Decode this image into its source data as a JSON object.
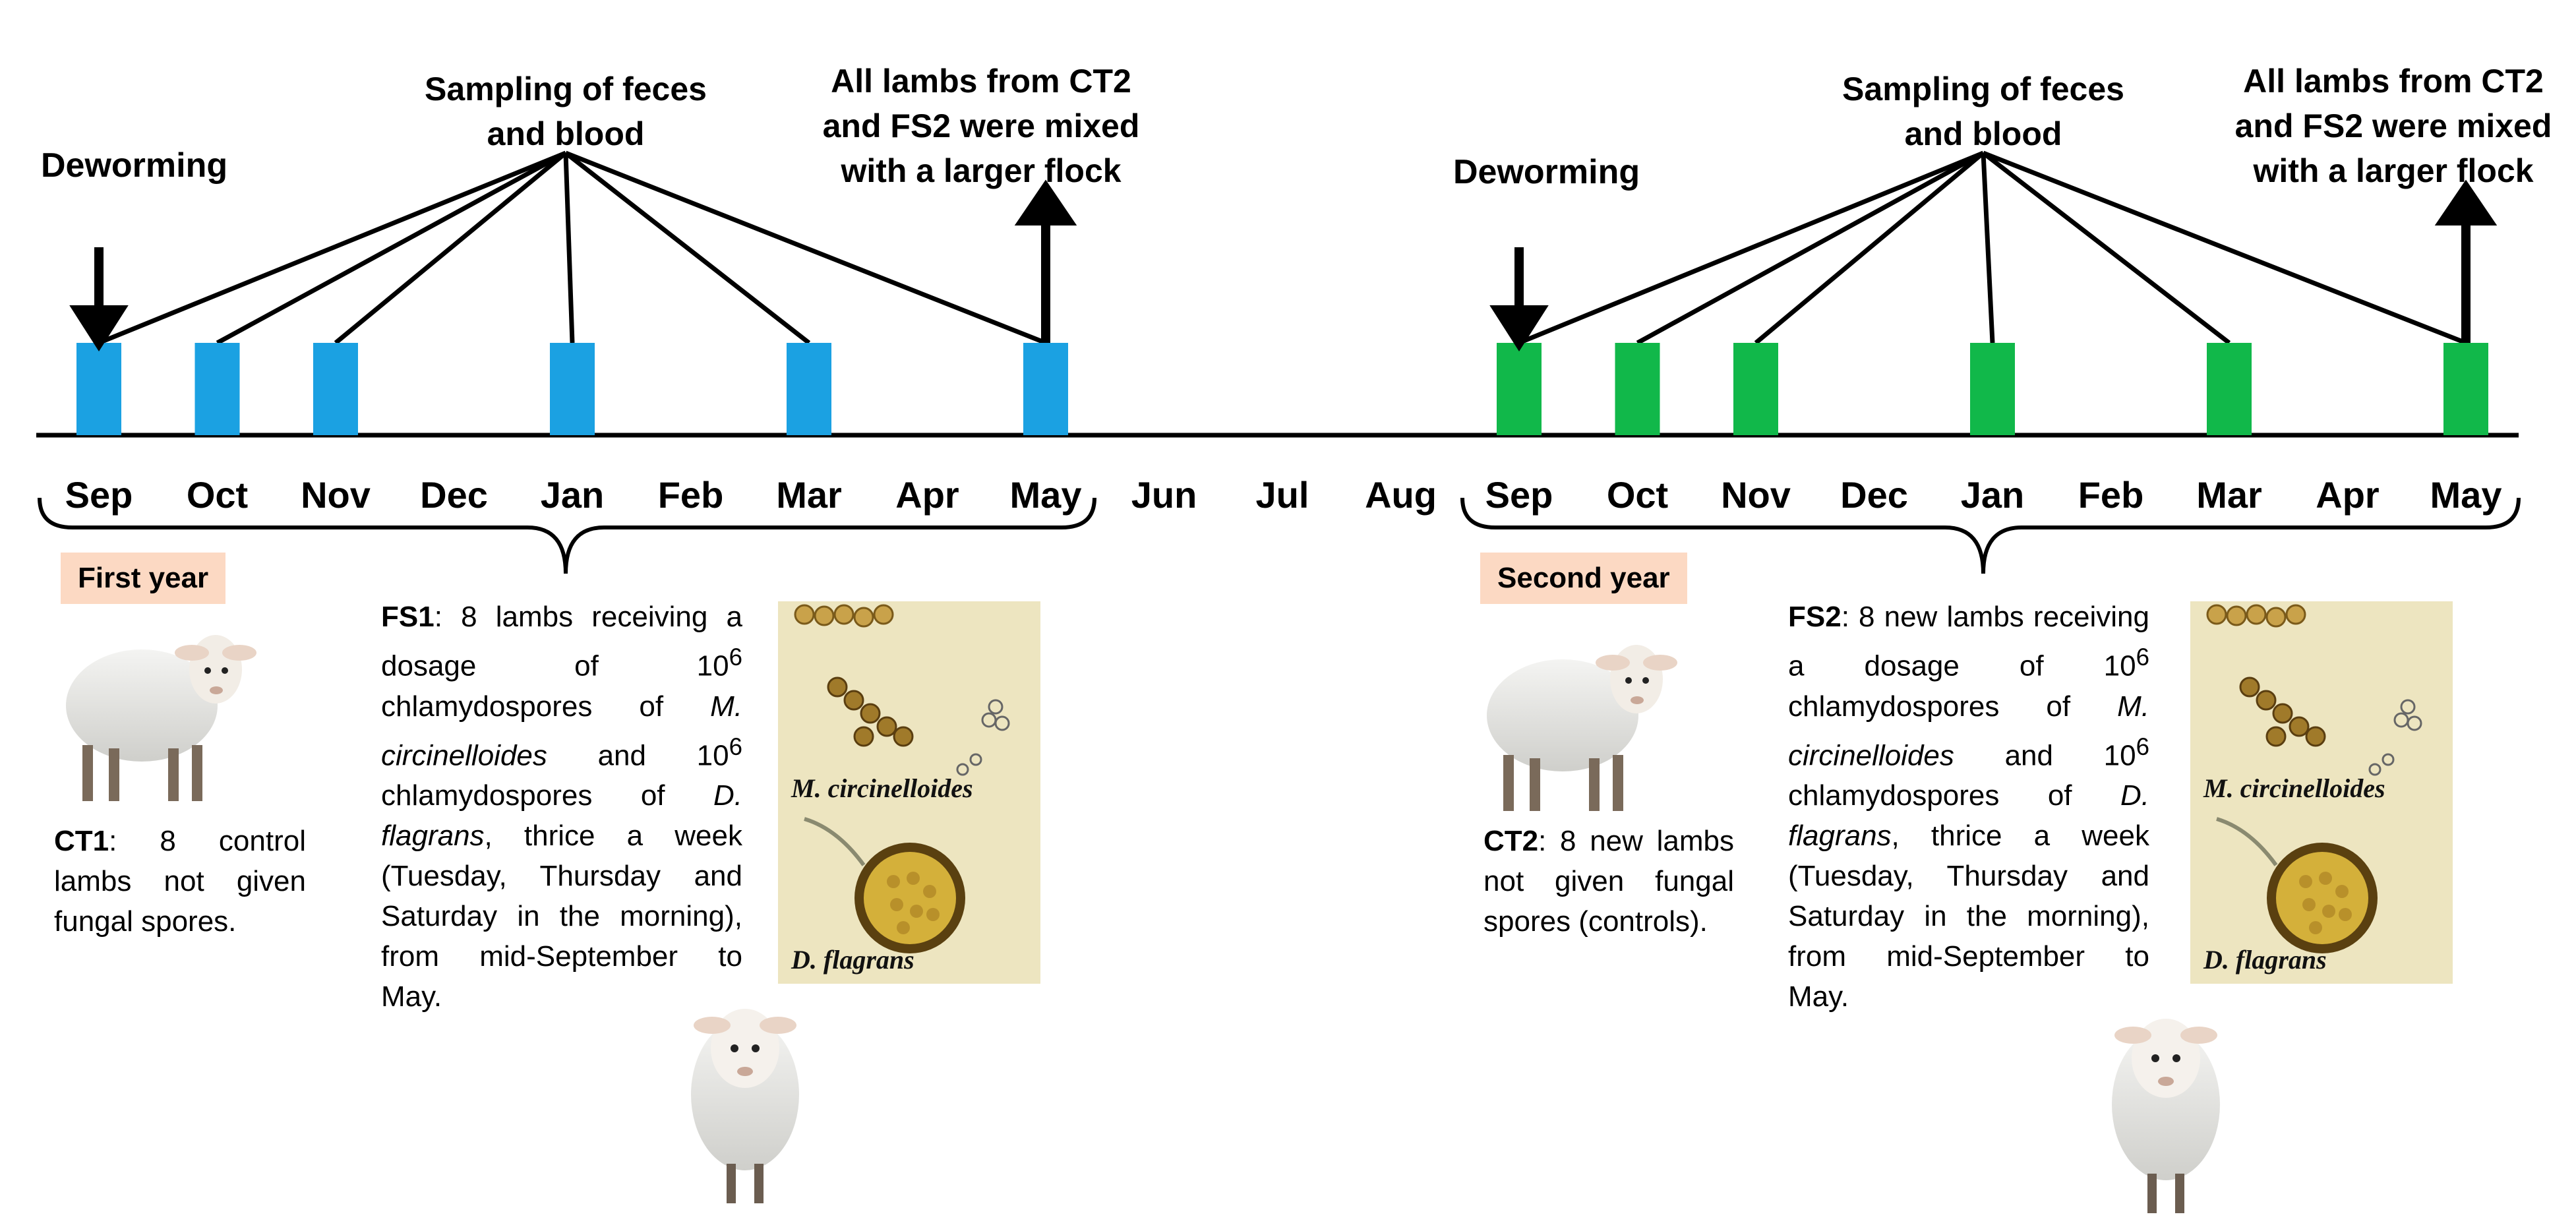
{
  "months": [
    "Sep",
    "Oct",
    "Nov",
    "Dec",
    "Jan",
    "Feb",
    "Mar",
    "Apr",
    "May",
    "Jun",
    "Jul",
    "Aug",
    "Sep",
    "Oct",
    "Nov",
    "Dec",
    "Jan",
    "Feb",
    "Mar",
    "Apr",
    "May"
  ],
  "colors": {
    "first_year": "#1ba1e2",
    "second_year": "#11b84a",
    "badge": "#fcd9c3"
  },
  "first_year": {
    "badge": "First year",
    "deworming": "Deworming",
    "sampling_line1": "Sampling of feces",
    "sampling_line2": "and blood",
    "mixed_line1": "All lambs from CT2",
    "mixed_line2": "and FS2 were mixed",
    "mixed_line3": "with a larger flock",
    "sample_months": [
      "Sep",
      "Oct",
      "Nov",
      "Jan",
      "Mar",
      "May"
    ],
    "ct_label": "CT1",
    "ct_text": ": 8 control lambs not given fungal spores.",
    "fs_label": "FS1",
    "fs_text_a": ": 8 lambs receiving a dosage of 10",
    "fs_sup1": "6",
    "fs_text_b": " chlamydospores of ",
    "fs_species1": "M. circinelloides",
    "fs_text_c": " and 10",
    "fs_sup2": "6",
    "fs_text_d": " chlamydospores of ",
    "fs_species2": "D. flagrans",
    "fs_text_e": ", thrice a week (Tuesday, Thursday and Saturday in the morning), from mid-September to May.",
    "micro_cap1": "M. circinelloides",
    "micro_cap2": "D. flagrans"
  },
  "second_year": {
    "badge": "Second year",
    "deworming": "Deworming",
    "sampling_line1": "Sampling of feces",
    "sampling_line2": "and blood",
    "mixed_line1": "All lambs from CT2",
    "mixed_line2": "and FS2 were mixed",
    "mixed_line3": "with a larger flock",
    "sample_months": [
      "Sep",
      "Oct",
      "Nov",
      "Jan",
      "Mar",
      "May"
    ],
    "ct_label": "CT2",
    "ct_text": ": 8 new lambs not given fungal spores (controls).",
    "fs_label": "FS2",
    "fs_text_a": ": 8 new lambs receiving a dosage of 10",
    "fs_sup1": "6",
    "fs_text_b": " chlamydospores of ",
    "fs_species1": "M. circinelloides",
    "fs_text_c": " and 10",
    "fs_sup2": "6",
    "fs_text_d": " chlamydospores of ",
    "fs_species2": "D. flagrans",
    "fs_text_e": ", thrice a week (Tuesday, Thursday and Saturday in the morning), from mid-September to May.",
    "micro_cap1": "M. circinelloides",
    "micro_cap2": "D. flagrans"
  }
}
